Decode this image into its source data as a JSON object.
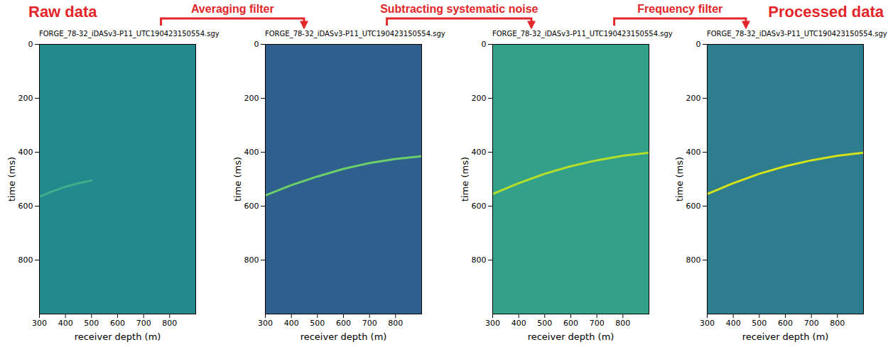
{
  "annotations": {
    "left_title": "Raw data",
    "right_title": "Processed data",
    "steps": [
      {
        "label": "Averaging filter",
        "from": 0,
        "to": 1
      },
      {
        "label": "Subtracting systematic noise",
        "from": 1,
        "to": 2
      },
      {
        "label": "Frequency filter",
        "from": 2,
        "to": 3
      }
    ]
  },
  "chart_data": [
    {
      "type": "line",
      "title": "FORGE_78-32_iDASv3-P11_UTC190423150554.sgy",
      "x_label": "receiver depth (m)",
      "y_label": "time (ms)",
      "x": [
        300,
        350,
        400,
        450,
        500
      ],
      "values": [
        565,
        545,
        528,
        515,
        505
      ],
      "color": "#3fae8a",
      "xlim": [
        300,
        900
      ],
      "ylim": [
        0,
        1000
      ],
      "xticks": [
        300,
        400,
        500,
        600,
        700,
        800
      ],
      "yticks": [
        0,
        200,
        400,
        600,
        800
      ]
    },
    {
      "type": "line",
      "title": "FORGE_78-32_iDASv3-P11_UTC190423150554.sgy",
      "x_label": "receiver depth (m)",
      "y_label": "time (ms)",
      "x": [
        300,
        400,
        500,
        600,
        700,
        800,
        900
      ],
      "values": [
        560,
        522,
        490,
        462,
        440,
        425,
        415
      ],
      "color": "#6ccf6a",
      "xlim": [
        300,
        900
      ],
      "ylim": [
        0,
        1000
      ],
      "xticks": [
        300,
        400,
        500,
        600,
        700,
        800
      ],
      "yticks": [
        0,
        200,
        400,
        600,
        800
      ]
    },
    {
      "type": "line",
      "title": "FORGE_78-32_iDASv3-P11_UTC190423150554.sgy",
      "x_label": "receiver depth (m)",
      "y_label": "time (ms)",
      "x": [
        300,
        400,
        500,
        600,
        700,
        800,
        900
      ],
      "values": [
        555,
        515,
        480,
        452,
        430,
        413,
        402
      ],
      "color": "#b5de2b",
      "xlim": [
        300,
        900
      ],
      "ylim": [
        0,
        1000
      ],
      "xticks": [
        300,
        400,
        500,
        600,
        700,
        800
      ],
      "yticks": [
        0,
        200,
        400,
        600,
        800
      ]
    },
    {
      "type": "line",
      "title": "FORGE_78-32_iDASv3-P11_UTC190423150554.sgy",
      "x_label": "receiver depth (m)",
      "y_label": "time (ms)",
      "x": [
        300,
        400,
        500,
        600,
        700,
        800,
        900
      ],
      "values": [
        555,
        515,
        480,
        452,
        430,
        413,
        402
      ],
      "color": "#d4e21a",
      "xlim": [
        300,
        900
      ],
      "ylim": [
        0,
        1000
      ],
      "xticks": [
        300,
        400,
        500,
        600,
        700,
        800
      ],
      "yticks": [
        0,
        200,
        400,
        600,
        800
      ]
    }
  ]
}
